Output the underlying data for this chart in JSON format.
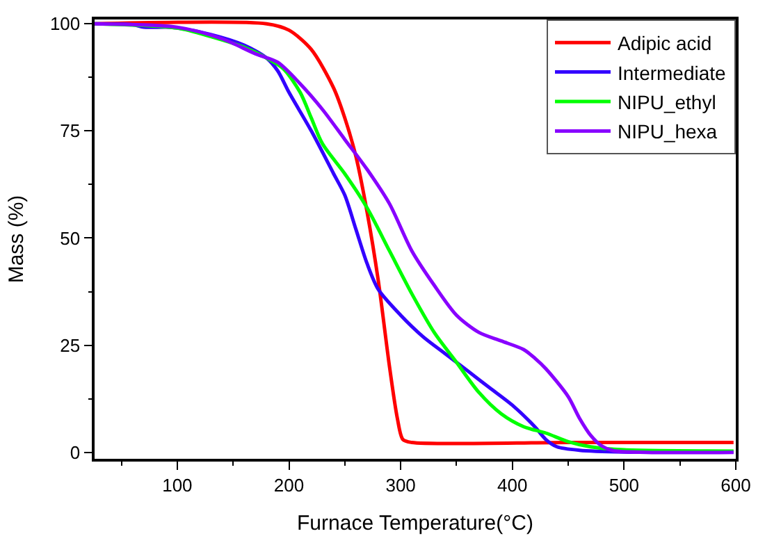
{
  "chart_data": {
    "type": "line",
    "xlabel": "Furnace Temperature(°C)",
    "ylabel": "Mass (%)",
    "xlim": [
      26,
      600
    ],
    "xticks": [
      100,
      200,
      300,
      400,
      500,
      600
    ],
    "ylim": [
      -1.5,
      101
    ],
    "yticks": [
      0,
      25,
      50,
      75,
      100
    ],
    "legend": "top right",
    "marker": "none",
    "line_style": "solid",
    "series": [
      {
        "name": "Adipic acid",
        "color": "#ff0000",
        "x": [
          26,
          180,
          200,
          220,
          240,
          250,
          260,
          270,
          280,
          290,
          297,
          302,
          310,
          450,
          598
        ],
        "values": [
          100,
          100,
          98.5,
          94,
          85,
          78,
          69,
          56,
          40,
          20,
          8,
          3,
          2.3,
          2.3,
          2.3
        ]
      },
      {
        "name": "Intermediate",
        "color": "#3300ff",
        "x": [
          26,
          60,
          70,
          90,
          100,
          130,
          160,
          180,
          190,
          200,
          220,
          240,
          250,
          260,
          270,
          280,
          300,
          320,
          340,
          360,
          380,
          400,
          420,
          430,
          440,
          460,
          500,
          598
        ],
        "values": [
          100,
          99.8,
          99.2,
          99.2,
          99,
          97.5,
          95,
          92,
          89,
          84,
          75,
          65,
          60,
          52,
          44,
          38,
          32,
          27,
          23,
          19,
          15,
          11,
          6,
          3,
          1.3,
          0.5,
          0.1,
          0.1
        ]
      },
      {
        "name": "NIPU_ethyl",
        "color": "#00ff00",
        "x": [
          26,
          100,
          130,
          160,
          180,
          195,
          210,
          220,
          230,
          250,
          270,
          290,
          310,
          330,
          350,
          370,
          390,
          410,
          430,
          450,
          470,
          500,
          598
        ],
        "values": [
          100,
          99,
          97,
          94.5,
          92,
          89.5,
          84,
          78,
          72,
          65,
          57,
          47,
          37,
          28,
          21,
          14,
          9,
          6,
          4.5,
          2.5,
          1.3,
          0.6,
          0.3
        ]
      },
      {
        "name": "NIPU_hexa",
        "color": "#8800ff",
        "x": [
          26,
          100,
          140,
          170,
          190,
          210,
          230,
          250,
          270,
          290,
          310,
          330,
          350,
          370,
          390,
          410,
          420,
          430,
          450,
          460,
          470,
          480,
          490,
          520,
          598
        ],
        "values": [
          100,
          99.2,
          96.5,
          93,
          91,
          86,
          80,
          73,
          66,
          58,
          47,
          39,
          32,
          28,
          26,
          24,
          22,
          19.5,
          13,
          8,
          4,
          1.5,
          0.4,
          0,
          0
        ]
      }
    ]
  }
}
